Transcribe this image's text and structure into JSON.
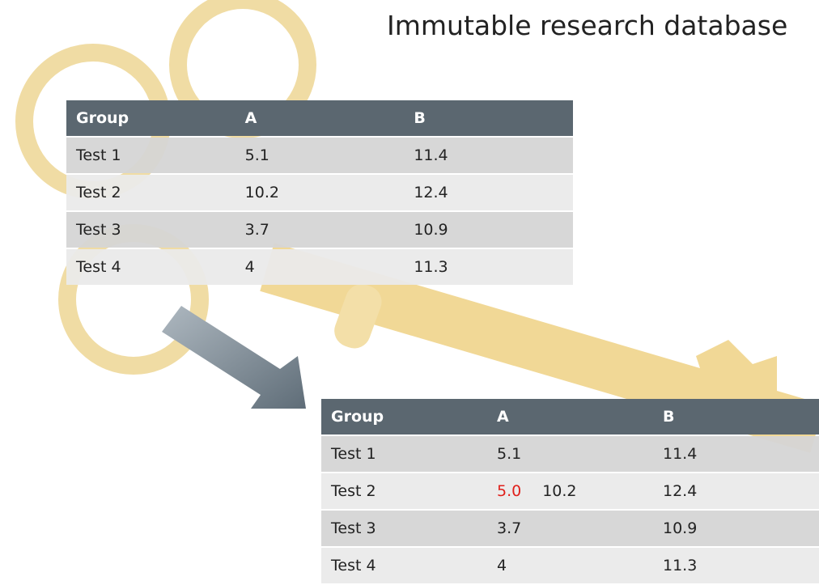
{
  "title": "Immutable research database",
  "table_before": {
    "header": [
      "Group",
      "A",
      "B"
    ],
    "rows": [
      [
        "Test 1",
        "5.1",
        "11.4"
      ],
      [
        "Test 2",
        "10.2",
        "12.4"
      ],
      [
        "Test 3",
        "3.7",
        "10.9"
      ],
      [
        "Test 4",
        "4",
        "11.3"
      ]
    ]
  },
  "table_after": {
    "header": [
      "Group",
      "A",
      "B"
    ],
    "rows": [
      [
        "Test 1",
        "5.1",
        "11.4"
      ],
      [
        "Test 2",
        {
          "correction": "5.0",
          "original": "10.2"
        },
        "12.4"
      ],
      [
        "Test 3",
        "3.7",
        "10.9"
      ],
      [
        "Test 4",
        "4",
        "11.3"
      ]
    ]
  }
}
